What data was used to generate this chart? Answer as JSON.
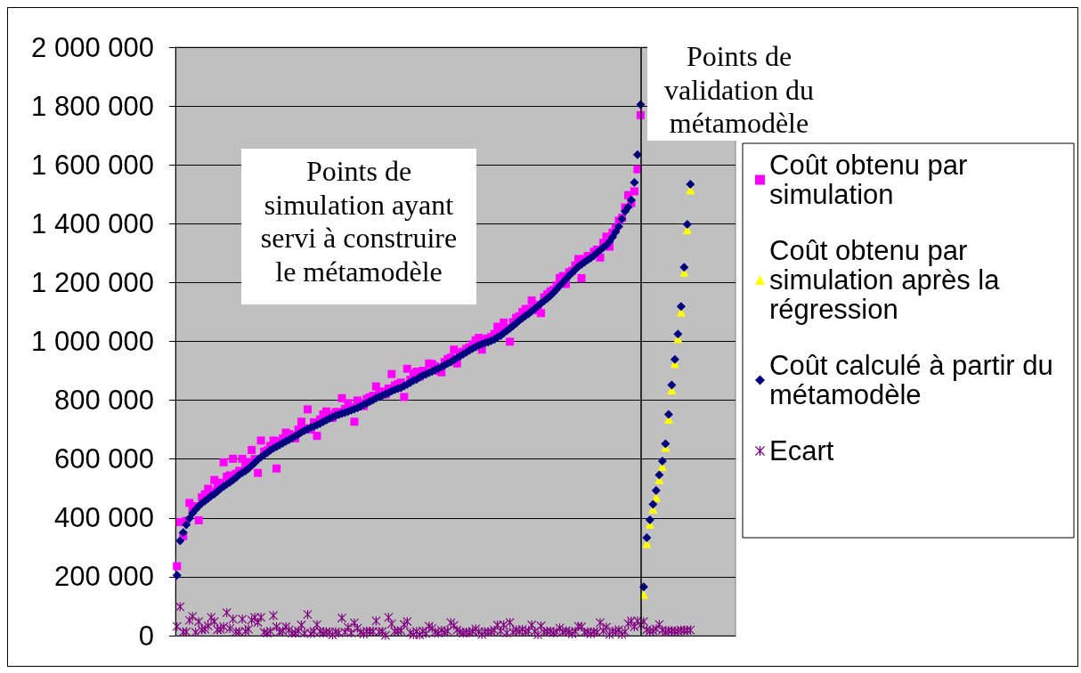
{
  "chart_data": {
    "type": "scatter",
    "annotations": [
      "Points de simulation ayant servi à construire le métamodèle",
      "Points de validation du métamodèle"
    ],
    "categories": [
      null,
      null,
      null,
      null,
      null,
      null,
      null,
      null,
      null,
      null,
      null,
      null,
      null,
      null,
      null,
      null,
      null,
      null,
      null,
      null,
      null,
      null,
      null,
      null,
      null,
      null,
      null,
      null,
      null,
      null,
      null,
      null,
      null,
      null,
      null,
      null,
      null,
      null,
      null,
      null,
      null,
      null,
      null,
      null,
      null,
      null,
      null,
      null,
      null,
      null,
      null,
      null,
      null,
      null,
      null,
      null,
      null,
      null,
      null,
      null,
      null,
      null,
      null,
      null,
      null,
      null,
      null,
      null,
      null,
      null,
      null,
      null,
      null,
      null,
      null,
      null,
      null,
      null,
      null,
      null,
      null,
      null,
      null,
      null,
      null,
      null,
      null,
      null,
      null,
      null,
      null,
      null,
      null,
      null,
      null,
      null,
      null,
      null,
      null,
      null,
      null,
      null,
      null,
      null,
      null,
      null,
      null,
      null,
      null,
      null,
      null,
      null,
      null,
      null,
      null,
      null,
      null,
      null,
      null,
      null,
      null,
      null,
      null,
      null,
      null,
      null,
      null,
      null,
      null,
      null,
      null,
      null,
      null,
      null,
      null,
      null,
      null,
      null,
      null,
      null,
      null,
      null,
      null,
      null,
      null,
      null,
      null,
      null,
      null,
      null,
      null,
      null,
      null,
      null,
      null,
      null,
      null,
      null,
      null,
      null,
      null,
      null,
      null,
      null,
      null,
      null,
      null,
      null,
      null,
      null,
      null,
      null,
      null,
      null,
      null,
      null,
      null,
      null,
      null,
      null
    ],
    "ylim": [
      0,
      2000000
    ],
    "yticks": [
      0,
      {
        "value": 200000,
        "label": "200 000"
      },
      {
        "value": 400000,
        "label": "400 000"
      },
      {
        "value": 600000,
        "label": "600 000"
      },
      {
        "value": 800000,
        "label": "800 000"
      },
      {
        "value": 1000000,
        "label": "1 000 000"
      },
      {
        "value": 1200000,
        "label": "1 200 000"
      },
      {
        "value": 1400000,
        "label": "1 400 000"
      },
      {
        "value": 1600000,
        "label": "1 600 000"
      },
      {
        "value": 1800000,
        "label": "1 800 000"
      },
      {
        "value": 2000000,
        "label": "2 000 000"
      }
    ],
    "grid": "y",
    "legend": "right",
    "tick_labels": "y",
    "series": [
      {
        "name": "Coût obtenu par simulation",
        "color": "#ff00ff",
        "marker": "square",
        "values": [
          236000,
          386000,
          338000,
          390000,
          451000,
          430000,
          440000,
          392000,
          470000,
          480000,
          499000,
          490000,
          529000,
          510000,
          520000,
          589000,
          540000,
          545000,
          601000,
          550000,
          560000,
          601000,
          575000,
          590000,
          631000,
          600000,
          553000,
          663000,
          625000,
          630000,
          645000,
          663000,
          568000,
          660000,
          670000,
          690000,
          685000,
          680000,
          670000,
          700000,
          727000,
          705000,
          769000,
          700000,
          725000,
          679000,
          735000,
          752000,
          762000,
          750000,
          740000,
          760000,
          760000,
          807000,
          770000,
          790000,
          775000,
          727000,
          799000,
          790000,
          780000,
          805000,
          810000,
          815000,
          847000,
          825000,
          830000,
          820000,
          840000,
          889000,
          850000,
          855000,
          860000,
          811000,
          907000,
          870000,
          890000,
          897000,
          880000,
          900000,
          895000,
          925000,
          923000,
          915000,
          900000,
          895000,
          930000,
          940000,
          945000,
          972000,
          925000,
          962000,
          965000,
          975000,
          980000,
          990000,
          1004000,
          1012000,
          972000,
          1008000,
          1010000,
          1015000,
          1025000,
          1050000,
          1035000,
          1064000,
          1045000,
          999000,
          1065000,
          1080000,
          1085000,
          1100000,
          1110000,
          1110000,
          1139000,
          1125000,
          1105000,
          1096000,
          1150000,
          1160000,
          1170000,
          1175000,
          1190000,
          1215000,
          1222000,
          1195000,
          1235000,
          1240000,
          1258000,
          1280000,
          1215000,
          1280000,
          1290000,
          1290000,
          1305000,
          1312000,
          1285000,
          1335000,
          1356000,
          1322000,
          1370000,
          1385000,
          1410000,
          1420000,
          1455000,
          1497000,
          1470000,
          1510000,
          1585000,
          1769000,
          null,
          null,
          null,
          null,
          null,
          null,
          null,
          null,
          null,
          null,
          null,
          null,
          null,
          null,
          null,
          null,
          null,
          null,
          null,
          null,
          null,
          null,
          null,
          null,
          null,
          null,
          null,
          null,
          null,
          null
        ]
      },
      {
        "name": "Coût obtenu par simulation après la régression",
        "color": "#ffff00",
        "marker": "triangle",
        "values": [
          null,
          null,
          null,
          null,
          null,
          null,
          null,
          null,
          null,
          null,
          null,
          null,
          null,
          null,
          null,
          null,
          null,
          null,
          null,
          null,
          null,
          null,
          null,
          null,
          null,
          null,
          null,
          null,
          null,
          null,
          null,
          null,
          null,
          null,
          null,
          null,
          null,
          null,
          null,
          null,
          null,
          null,
          null,
          null,
          null,
          null,
          null,
          null,
          null,
          null,
          null,
          null,
          null,
          null,
          null,
          null,
          null,
          null,
          null,
          null,
          null,
          null,
          null,
          null,
          null,
          null,
          null,
          null,
          null,
          null,
          null,
          null,
          null,
          null,
          null,
          null,
          null,
          null,
          null,
          null,
          null,
          null,
          null,
          null,
          null,
          null,
          null,
          null,
          null,
          null,
          null,
          null,
          null,
          null,
          null,
          null,
          null,
          null,
          null,
          null,
          null,
          null,
          null,
          null,
          null,
          null,
          null,
          null,
          null,
          null,
          null,
          null,
          null,
          null,
          null,
          null,
          null,
          null,
          null,
          null,
          null,
          null,
          null,
          null,
          null,
          null,
          null,
          null,
          null,
          null,
          null,
          null,
          null,
          null,
          null,
          null,
          null,
          null,
          null,
          null,
          null,
          null,
          null,
          null,
          null,
          null,
          null,
          null,
          null,
          null,
          140000,
          313000,
          378000,
          430000,
          470000,
          530000,
          575000,
          640000,
          735000,
          835000,
          925000,
          1010000,
          1100000,
          1235000,
          1380000,
          1515000,
          null,
          null,
          null,
          null,
          null,
          null,
          null,
          null,
          null,
          null,
          null,
          null,
          null,
          null
        ]
      },
      {
        "name": "Coût calculé à partir du métamodèle",
        "color": "#000080",
        "marker": "diamond",
        "values": [
          205000,
          322000,
          350000,
          377000,
          399000,
          416000,
          429000,
          440000,
          450000,
          458000,
          466000,
          475000,
          481000,
          490000,
          499000,
          507000,
          514000,
          521000,
          529000,
          537000,
          547000,
          554000,
          560000,
          568000,
          578000,
          588000,
          598000,
          607000,
          614000,
          622000,
          630000,
          637000,
          642000,
          648000,
          654000,
          660000,
          666000,
          672000,
          678000,
          684000,
          691000,
          697000,
          702000,
          707000,
          711000,
          716000,
          721000,
          727000,
          732000,
          738000,
          742000,
          747000,
          751000,
          755000,
          758000,
          762000,
          766000,
          770000,
          774000,
          779000,
          785000,
          790000,
          796000,
          801000,
          807000,
          812000,
          816000,
          821000,
          825000,
          831000,
          836000,
          840000,
          843000,
          849000,
          854000,
          860000,
          867000,
          871000,
          878000,
          884000,
          888000,
          893000,
          898000,
          903000,
          908000,
          913000,
          919000,
          925000,
          930000,
          937000,
          944000,
          950000,
          957000,
          963000,
          970000,
          976000,
          981000,
          987000,
          991000,
          995000,
          998000,
          1002000,
          1007000,
          1014000,
          1020000,
          1028000,
          1036000,
          1044000,
          1053000,
          1061000,
          1071000,
          1079000,
          1087000,
          1094000,
          1103000,
          1111000,
          1120000,
          1129000,
          1138000,
          1146000,
          1155000,
          1166000,
          1177000,
          1189000,
          1200000,
          1212000,
          1223000,
          1234000,
          1244000,
          1254000,
          1262000,
          1269000,
          1277000,
          1284000,
          1292000,
          1301000,
          1310000,
          1319000,
          1327000,
          1340000,
          1355000,
          1372000,
          1390000,
          1416000,
          1442000,
          1456000,
          1480000,
          1540000,
          1635000,
          1805000,
          166000,
          333000,
          393000,
          446000,
          493000,
          546000,
          593000,
          652000,
          752000,
          852000,
          939000,
          1025000,
          1119000,
          1252000,
          1398000,
          1534000,
          null,
          null,
          null,
          null,
          null,
          null,
          null,
          null,
          null,
          null,
          null,
          null,
          null,
          null
        ]
      },
      {
        "name": "Ecart",
        "color": "#800080",
        "marker": "cross",
        "values": [
          31000,
          98000,
          12000,
          13000,
          52000,
          65000,
          11000,
          48000,
          20000,
          22000,
          33000,
          62000,
          48000,
          20000,
          21000,
          30000,
          78000,
          24000,
          56000,
          13000,
          13000,
          56000,
          15000,
          22000,
          53000,
          62000,
          45000,
          62000,
          11000,
          8000,
          15000,
          68000,
          30000,
          12000,
          16000,
          30000,
          19000,
          8000,
          8000,
          16000,
          36000,
          8000,
          72000,
          7000,
          14000,
          37000,
          14000,
          8000,
          13000,
          12000,
          2000,
          13000,
          9000,
          60000,
          12000,
          28000,
          9000,
          43000,
          25000,
          11000,
          5000,
          15000,
          14000,
          14000,
          50000,
          13000,
          14000,
          1000,
          62000,
          40000,
          14000,
          15000,
          17000,
          38000,
          48000,
          10000,
          3000,
          14000,
          2000,
          16000,
          7000,
          32000,
          25000,
          12000,
          8000,
          18000,
          11000,
          15000,
          44000,
          35000,
          19000,
          12000,
          8000,
          12000,
          10000,
          14000,
          23000,
          13000,
          4000,
          13000,
          12000,
          13000,
          18000,
          36000,
          15000,
          36000,
          9000,
          45000,
          12000,
          19000,
          14000,
          21000,
          13000,
          16000,
          36000,
          14000,
          3000,
          33000,
          12000,
          14000,
          15000,
          9000,
          13000,
          26000,
          12000,
          17000,
          12000,
          6000,
          14000,
          32000,
          30000,
          11000,
          13000,
          6000,
          13000,
          11000,
          44000,
          16000,
          29000,
          4000,
          15000,
          13000,
          20000,
          4000,
          13000,
          41000,
          50000,
          30000,
          50000,
          36000,
          48000,
          20000,
          15000,
          16000,
          23000,
          38000,
          18000,
          12000,
          17000,
          17000,
          14000,
          15000,
          19000,
          17000,
          18000,
          19000,
          null,
          null,
          null,
          null,
          null,
          null,
          null,
          null,
          null,
          null,
          null,
          null,
          null,
          null
        ]
      }
    ]
  }
}
